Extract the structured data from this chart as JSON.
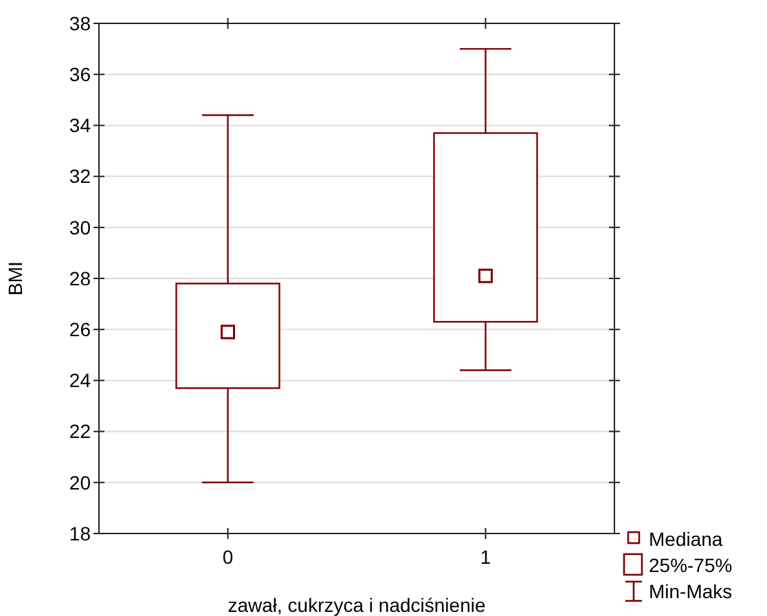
{
  "chart_data": {
    "type": "box",
    "xlabel": "zawał, cukrzyca i nadciśnienie",
    "ylabel": "BMI",
    "categories": [
      "0",
      "1"
    ],
    "series": [
      {
        "color": "#800000",
        "boxes": [
          {
            "low": 20.0,
            "q1": 23.7,
            "median": 25.9,
            "q3": 27.8,
            "high": 34.4
          },
          {
            "low": 24.4,
            "q1": 26.3,
            "median": 28.1,
            "q3": 33.7,
            "high": 37.0
          }
        ]
      }
    ],
    "ylim": [
      18,
      38
    ],
    "yticks": [
      18,
      20,
      22,
      24,
      26,
      28,
      30,
      32,
      34,
      36,
      38
    ],
    "grid": "y",
    "annotations": [
      "Mediana",
      "25%-75%",
      "Min-Maks"
    ]
  }
}
